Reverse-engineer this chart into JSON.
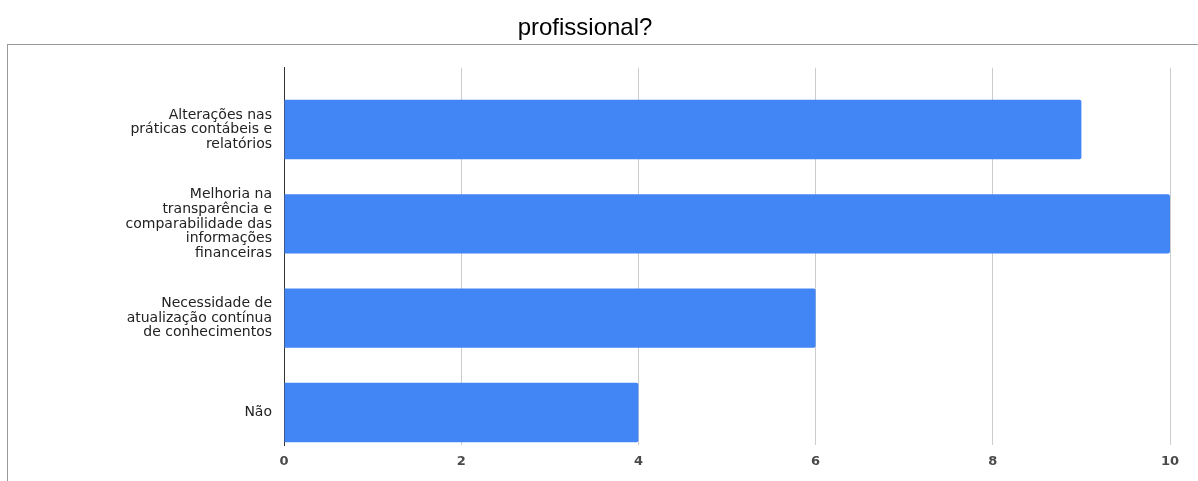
{
  "chart_data": {
    "type": "bar",
    "orientation": "horizontal",
    "title": "profissional?",
    "categories": [
      "Alterações nas práticas contábeis e relatórios",
      "Melhoria na transparência e comparabilidade das informações financeiras",
      "Necessidade de atualização contínua de conhecimentos",
      "Não"
    ],
    "values": [
      9,
      10,
      6,
      4
    ],
    "color": "#4285f4",
    "xlim": [
      0,
      10
    ],
    "xticks": [
      0,
      2,
      4,
      6,
      8,
      10
    ],
    "grid": "x"
  }
}
